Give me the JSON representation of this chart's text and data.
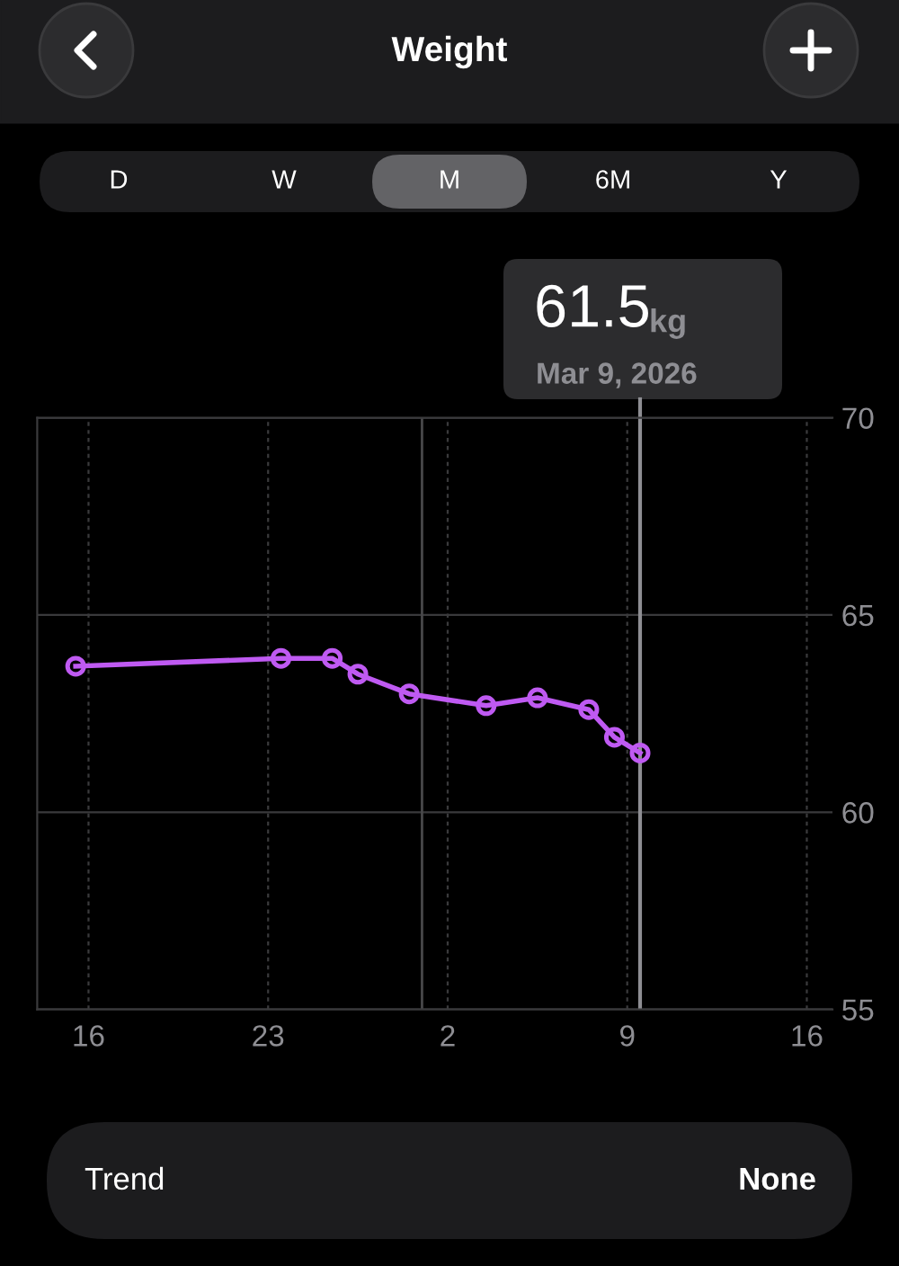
{
  "chart_data": {
    "type": "line",
    "title": "Weight",
    "x": [
      "2026-02-15T12:00",
      "2026-02-23T12:00",
      "2026-02-25T12:00",
      "2026-02-26T12:00",
      "2026-02-28T12:00",
      "2026-03-03T12:00",
      "2026-03-05T12:00",
      "2026-03-07T12:00",
      "2026-03-08T12:00",
      "2026-03-09T12:00"
    ],
    "series": [
      {
        "color": "#bf5af2",
        "values": [
          63.7,
          63.9,
          63.9,
          63.5,
          63.0,
          62.7,
          62.9,
          62.6,
          61.9,
          61.5
        ]
      }
    ],
    "marker": "circle",
    "line_style": "solid",
    "grid": true,
    "legend": false,
    "xlim": [
      "2026-02-14",
      "2026-03-17"
    ],
    "xticks": [
      {
        "value": "2026-02-16",
        "label": "16"
      },
      {
        "value": "2026-02-23",
        "label": "23"
      },
      {
        "value": "2026-03-02",
        "label": "2"
      },
      {
        "value": "2026-03-09",
        "label": "9"
      },
      {
        "value": "2026-03-16",
        "label": "16"
      }
    ],
    "ylim": [
      55,
      70
    ],
    "yticks": [
      55,
      60,
      65,
      70
    ],
    "ref_lines": [
      {
        "axis": "x",
        "value": "2026-03-01",
        "label": null,
        "color": "#48484a",
        "line_style": "solid"
      },
      {
        "axis": "x",
        "value": "2026-03-09T12:00",
        "label": null,
        "color": "#8e8e93",
        "line_style": "solid"
      }
    ],
    "annotations": [
      "61.5",
      "kg",
      "Mar 9, 2026",
      "D",
      "W",
      "M",
      "6M",
      "Y",
      "Trend",
      "None"
    ]
  }
}
